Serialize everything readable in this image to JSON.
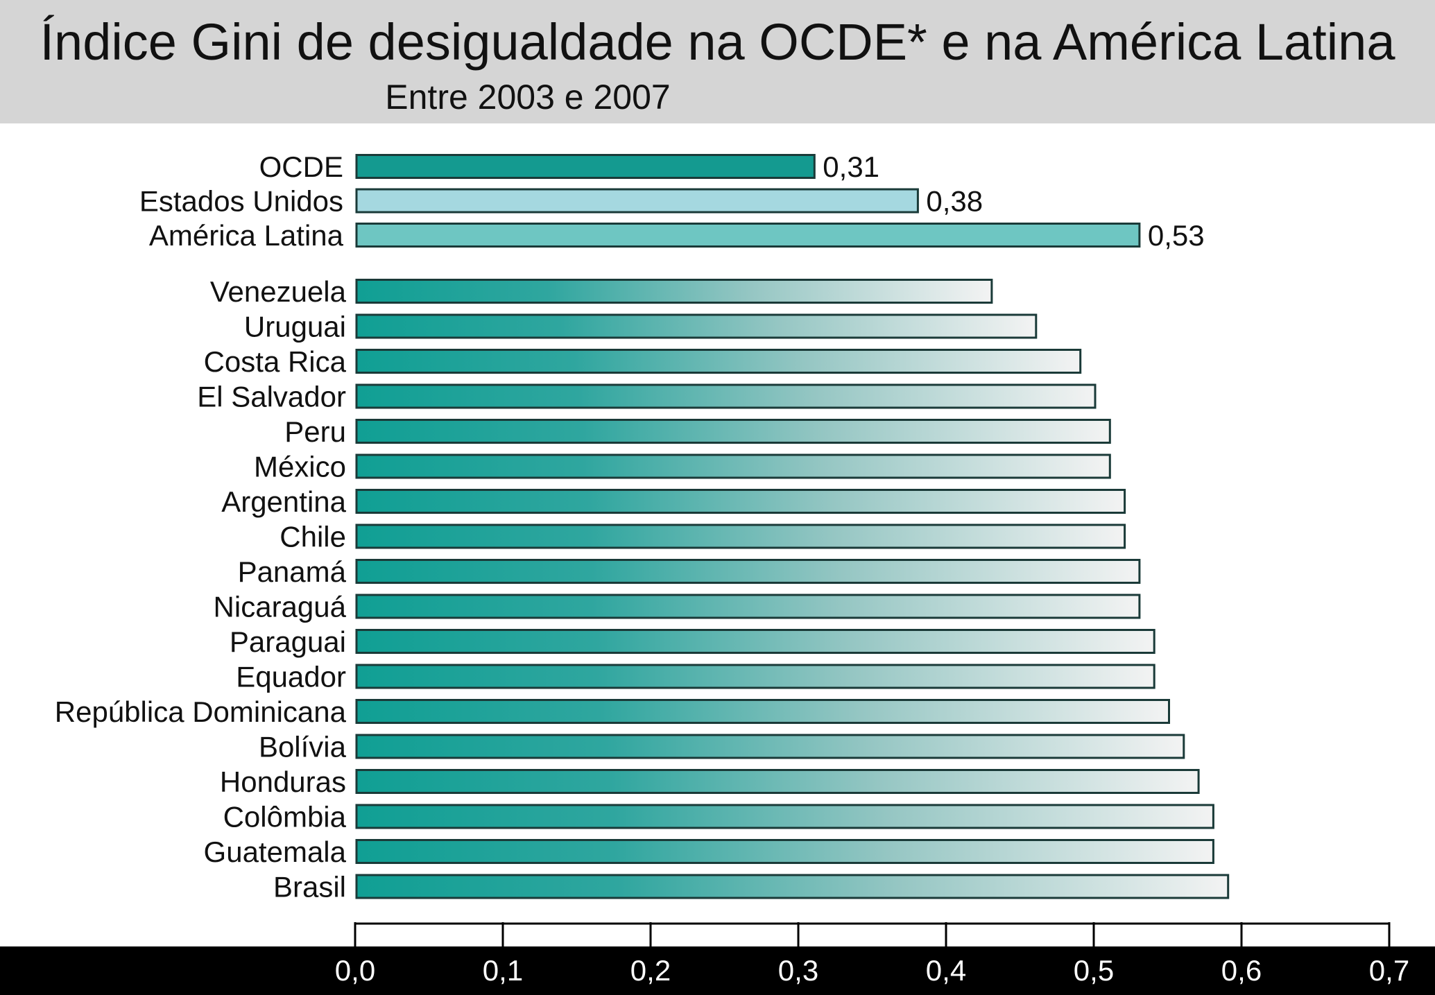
{
  "title": "Índice Gini de desigualdade na OCDE* e na América Latina",
  "subtitle": "Entre 2003 e 2007",
  "colors": {
    "title_band": "#d5d5d5",
    "axis_band": "#000000",
    "bar_stroke": "#1a3a38",
    "ocde": "#149a90",
    "estados_unidos": "#a5d8e0",
    "america_latina": "#6ec6c2",
    "gradient_start": "#109f94",
    "gradient_end": "#f3f3f3"
  },
  "chart_data": {
    "type": "bar",
    "orientation": "horizontal",
    "title": "Índice Gini de desigualdade na OCDE* e na América Latina",
    "subtitle": "Entre 2003 e 2007",
    "xlabel": "",
    "ylabel": "",
    "xlim": [
      0,
      0.7
    ],
    "x_ticks": [
      "0,0",
      "0,1",
      "0,2",
      "0,3",
      "0,4",
      "0,5",
      "0,6",
      "0,7"
    ],
    "grid": false,
    "groups": [
      {
        "categories": [
          "OCDE",
          "Estados Unidos",
          "América Latina"
        ],
        "values": [
          0.31,
          0.38,
          0.53
        ],
        "data_labels": [
          "0,31",
          "0,38",
          "0,53"
        ],
        "colors": [
          "#149a90",
          "#a5d8e0",
          "#6ec6c2"
        ]
      },
      {
        "categories": [
          "Venezuela",
          "Uruguai",
          "Costa Rica",
          "El Salvador",
          "Peru",
          "México",
          "Argentina",
          "Chile",
          "Panamá",
          "Nicaraguá",
          "Paraguai",
          "Equador",
          "República Dominicana",
          "Bolívia",
          "Honduras",
          "Colômbia",
          "Guatemala",
          "Brasil"
        ],
        "values": [
          0.43,
          0.46,
          0.49,
          0.5,
          0.51,
          0.51,
          0.52,
          0.52,
          0.53,
          0.53,
          0.54,
          0.54,
          0.55,
          0.56,
          0.57,
          0.58,
          0.58,
          0.59
        ],
        "fill": "gradient"
      }
    ]
  }
}
